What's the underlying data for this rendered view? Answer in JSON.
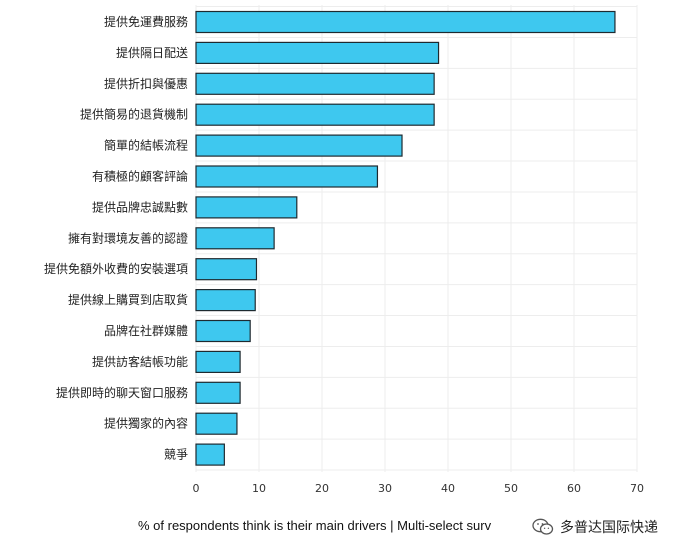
{
  "chart_data": {
    "type": "bar",
    "orientation": "horizontal",
    "categories": [
      "提供免運費服務",
      "提供隔日配送",
      "提供折扣與優惠",
      "提供簡易的退貨機制",
      "簡單的結帳流程",
      "有積極的顧客評論",
      "提供品牌忠誠點數",
      "擁有對環境友善的認證",
      "提供免額外收費的安裝選項",
      "提供線上購買到店取貨",
      "品牌在社群媒體",
      "提供訪客結帳功能",
      "提供即時的聊天窗口服務",
      "提供獨家的內容",
      "競爭"
    ],
    "values": [
      66.5,
      38.5,
      37.8,
      37.8,
      32.7,
      28.8,
      16.0,
      12.4,
      9.6,
      9.4,
      8.6,
      7.0,
      7.0,
      6.5,
      4.5
    ],
    "xlim": [
      0,
      70
    ],
    "xticks": [
      0,
      10,
      20,
      30,
      40,
      50,
      60,
      70
    ],
    "xlabel": "% of respondents think is their main drivers | Multi-select surv",
    "bar_color": "#3ec8ef",
    "grid": true
  },
  "watermark": {
    "text": "多普达国际快递",
    "icon": "wechat-icon"
  }
}
